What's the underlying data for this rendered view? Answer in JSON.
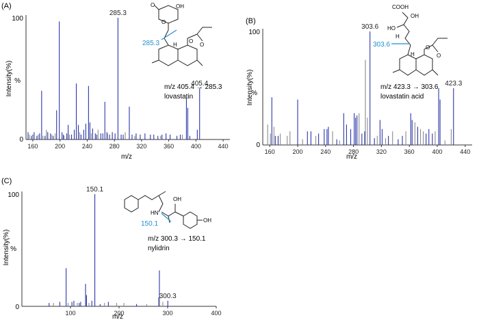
{
  "chart_data": [
    {
      "type": "bar",
      "panel_label": "(A)",
      "xlabel": "m/z",
      "ylabel": "Intensity(%)",
      "ylabel_unit": "%",
      "xlim": [
        150,
        450
      ],
      "ylim": [
        0,
        100
      ],
      "xticks": [
        "160",
        "200",
        "240",
        "280",
        "320",
        "360",
        "400",
        "440"
      ],
      "yticks": [
        "0",
        "100"
      ],
      "compound_name": "lovastatin",
      "transition": "m/z 405.4 → 285.3",
      "fragment_label": "285.3",
      "series": [
        {
          "color": "#2b35a8",
          "peaks": [
            [
              153,
              6
            ],
            [
              158,
              3
            ],
            [
              160,
              4
            ],
            [
              162,
              6
            ],
            [
              166,
              3
            ],
            [
              170,
              5
            ],
            [
              173,
              40
            ],
            [
              178,
              3
            ],
            [
              182,
              6
            ],
            [
              186,
              5
            ],
            [
              190,
              3
            ],
            [
              195,
              24
            ],
            [
              199,
              97
            ],
            [
              203,
              6
            ],
            [
              205,
              4
            ],
            [
              210,
              5
            ],
            [
              212,
              12
            ],
            [
              217,
              4
            ],
            [
              221,
              8
            ],
            [
              224,
              46
            ],
            [
              227,
              12
            ],
            [
              231,
              4
            ],
            [
              235,
              8
            ],
            [
              238,
              13
            ],
            [
              242,
              44
            ],
            [
              244,
              14
            ],
            [
              248,
              9
            ],
            [
              252,
              5
            ],
            [
              254,
              4
            ],
            [
              260,
              5
            ],
            [
              263,
              5
            ],
            [
              266,
              31
            ],
            [
              269,
              6
            ],
            [
              273,
              4
            ],
            [
              277,
              6
            ],
            [
              281,
              5
            ],
            [
              285.3,
              100
            ],
            [
              290,
              4
            ],
            [
              293,
              4
            ],
            [
              302,
              27
            ],
            [
              306,
              4
            ],
            [
              312,
              5
            ],
            [
              318,
              4
            ],
            [
              325,
              5
            ],
            [
              333,
              4
            ],
            [
              338,
              4
            ],
            [
              344,
              3
            ],
            [
              350,
              4
            ],
            [
              356,
              5
            ],
            [
              362,
              4
            ],
            [
              372,
              3
            ],
            [
              377,
              4
            ],
            [
              386,
              34
            ],
            [
              388,
              26
            ],
            [
              391,
              3
            ],
            [
              402,
              8
            ],
            [
              405.4,
              42
            ]
          ]
        },
        {
          "color": "#8a8a8a",
          "peaks": [
            [
              155,
              4
            ],
            [
              160,
              3
            ],
            [
              168,
              4
            ],
            [
              175,
              3
            ],
            [
              180,
              8
            ],
            [
              188,
              4
            ],
            [
              193,
              5
            ],
            [
              206,
              3
            ],
            [
              214,
              4
            ],
            [
              229,
              6
            ],
            [
              246,
              5
            ],
            [
              256,
              8
            ],
            [
              270,
              5
            ],
            [
              296,
              6
            ],
            [
              310,
              3
            ],
            [
              348,
              3
            ],
            [
              380,
              4
            ]
          ]
        }
      ],
      "peak_labels": [
        {
          "x": 285.3,
          "text": "285.3"
        },
        {
          "x": 405.4,
          "text": "405.4"
        }
      ]
    },
    {
      "type": "bar",
      "panel_label": "(B)",
      "xlabel": "m/z",
      "ylabel": "Intensity(%)",
      "ylabel_unit": "%",
      "xlim": [
        150,
        450
      ],
      "ylim": [
        0,
        100
      ],
      "xticks": [
        "160",
        "200",
        "240",
        "280",
        "320",
        "360",
        "400",
        "440"
      ],
      "yticks": [
        "0",
        "100"
      ],
      "compound_name": "lovastatin acid",
      "transition": "m/z 423.3 → 303.6",
      "fragment_label": "303.6",
      "series": [
        {
          "color": "#2b35a8",
          "peaks": [
            [
              163,
              42
            ],
            [
              168,
              8
            ],
            [
              172,
              8
            ],
            [
              200,
              40
            ],
            [
              214,
              12
            ],
            [
              219,
              12
            ],
            [
              230,
              10
            ],
            [
              238,
              14
            ],
            [
              242,
              14
            ],
            [
              244,
              16
            ],
            [
              256,
              5
            ],
            [
              266,
              28
            ],
            [
              270,
              18
            ],
            [
              276,
              14
            ],
            [
              281,
              28
            ],
            [
              283,
              24
            ],
            [
              285,
              26
            ],
            [
              292,
              10
            ],
            [
              296,
              12
            ],
            [
              303.6,
              100
            ],
            [
              310,
              6
            ],
            [
              318,
              22
            ],
            [
              321,
              14
            ],
            [
              330,
              8
            ],
            [
              344,
              5
            ],
            [
              350,
              8
            ],
            [
              362,
              28
            ],
            [
              364,
              22
            ],
            [
              372,
              16
            ],
            [
              384,
              10
            ],
            [
              388,
              14
            ],
            [
              393,
              10
            ],
            [
              402,
              50
            ],
            [
              404,
              40
            ],
            [
              423.3,
              50
            ]
          ]
        },
        {
          "color": "#8a8a8a",
          "peaks": [
            [
              157,
              18
            ],
            [
              161,
              10
            ],
            [
              166,
              16
            ],
            [
              175,
              10
            ],
            [
              185,
              8
            ],
            [
              189,
              12
            ],
            [
              207,
              5
            ],
            [
              226,
              8
            ],
            [
              250,
              12
            ],
            [
              260,
              4
            ],
            [
              288,
              28
            ],
            [
              297,
              75
            ],
            [
              300,
              24
            ],
            [
              314,
              8
            ],
            [
              326,
              6
            ],
            [
              336,
              12
            ],
            [
              355,
              12
            ],
            [
              368,
              20
            ],
            [
              376,
              14
            ],
            [
              380,
              12
            ],
            [
              397,
              12
            ],
            [
              411,
              4
            ],
            [
              420,
              14
            ]
          ]
        }
      ],
      "peak_labels": [
        {
          "x": 303.6,
          "text": "303.6"
        },
        {
          "x": 423.3,
          "text": "423.3"
        }
      ]
    },
    {
      "type": "bar",
      "panel_label": "(C)",
      "xlabel": "m/z",
      "ylabel": "Intensity(%)",
      "ylabel_unit": "%",
      "xlim": [
        0,
        400
      ],
      "ylim": [
        0,
        100
      ],
      "xticks": [
        "100",
        "200",
        "300",
        "400"
      ],
      "yticks": [
        "0",
        "100"
      ],
      "compound_name": "nylidrin",
      "transition": "m/z 300.3 → 150.1",
      "fragment_label": "150.1",
      "series": [
        {
          "color": "#2b35a8",
          "peaks": [
            [
              56,
              3
            ],
            [
              78,
              4
            ],
            [
              91,
              34
            ],
            [
              103,
              4
            ],
            [
              107,
              5
            ],
            [
              118,
              3
            ],
            [
              121,
              4
            ],
            [
              131,
              20
            ],
            [
              133,
              10
            ],
            [
              144,
              5
            ],
            [
              150.1,
              100
            ],
            [
              161,
              2
            ],
            [
              178,
              4
            ],
            [
              236,
              2
            ],
            [
              283,
              32
            ],
            [
              300.3,
              5
            ]
          ]
        },
        {
          "color": "#8a8a8a",
          "peaks": [
            [
              65,
              3
            ],
            [
              95,
              3
            ],
            [
              114,
              3
            ],
            [
              138,
              3
            ],
            [
              170,
              3
            ],
            [
              195,
              3
            ],
            [
              210,
              3
            ],
            [
              257,
              2
            ],
            [
              281,
              8
            ],
            [
              290,
              4
            ]
          ]
        }
      ],
      "peak_labels": [
        {
          "x": 150.1,
          "text": "150.1"
        },
        {
          "x": 300.3,
          "text": "300.3"
        }
      ]
    }
  ],
  "structures": {
    "lovastatin": {
      "OH": "OH",
      "O1": "O",
      "O2": "O",
      "O3": "O",
      "O4": "O",
      "H": "H"
    },
    "lovastatin_acid": {
      "COOH": "COOH",
      "OH1": "OH",
      "OH2": "HO",
      "H1": "H",
      "O1": "O",
      "O2": "O",
      "H2": "H"
    },
    "nylidrin": {
      "OH": "OH",
      "HN": "HN",
      "HO": "OH"
    }
  },
  "colors": {
    "peak_blue": "#2b35a8",
    "peak_gray": "#8a8a8a",
    "fragment_blue": "#1f8fd0",
    "axis": "#333333"
  }
}
